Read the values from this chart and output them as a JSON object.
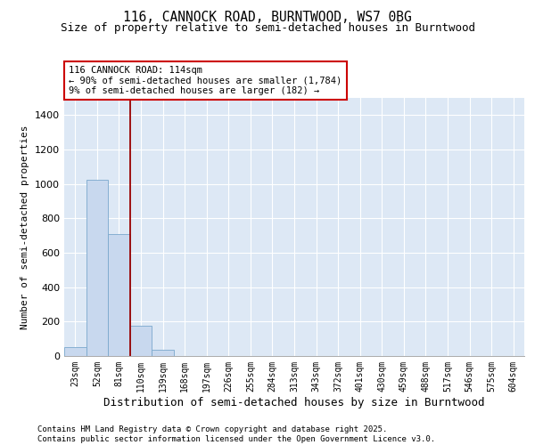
{
  "title1": "116, CANNOCK ROAD, BURNTWOOD, WS7 0BG",
  "title2": "Size of property relative to semi-detached houses in Burntwood",
  "xlabel": "Distribution of semi-detached houses by size in Burntwood",
  "ylabel": "Number of semi-detached properties",
  "categories": [
    "23sqm",
    "52sqm",
    "81sqm",
    "110sqm",
    "139sqm",
    "168sqm",
    "197sqm",
    "226sqm",
    "255sqm",
    "284sqm",
    "313sqm",
    "343sqm",
    "372sqm",
    "401sqm",
    "430sqm",
    "459sqm",
    "488sqm",
    "517sqm",
    "546sqm",
    "575sqm",
    "604sqm"
  ],
  "values": [
    50,
    1025,
    710,
    175,
    35,
    0,
    0,
    0,
    0,
    0,
    0,
    0,
    0,
    0,
    0,
    0,
    0,
    0,
    0,
    0,
    0
  ],
  "bar_color": "#c8d8ee",
  "bar_edgecolor": "#7aa8cc",
  "property_line_x": 2.5,
  "property_line_color": "#990000",
  "annotation_text": "116 CANNOCK ROAD: 114sqm\n← 90% of semi-detached houses are smaller (1,784)\n9% of semi-detached houses are larger (182) →",
  "ylim": [
    0,
    1500
  ],
  "yticks": [
    0,
    200,
    400,
    600,
    800,
    1000,
    1200,
    1400
  ],
  "background_color": "#dde8f5",
  "grid_color": "#ffffff",
  "footer_text": "Contains HM Land Registry data © Crown copyright and database right 2025.\nContains public sector information licensed under the Open Government Licence v3.0.",
  "title1_fontsize": 10.5,
  "title2_fontsize": 9,
  "xlabel_fontsize": 9,
  "ylabel_fontsize": 8,
  "tick_fontsize": 7,
  "footer_fontsize": 6.5
}
